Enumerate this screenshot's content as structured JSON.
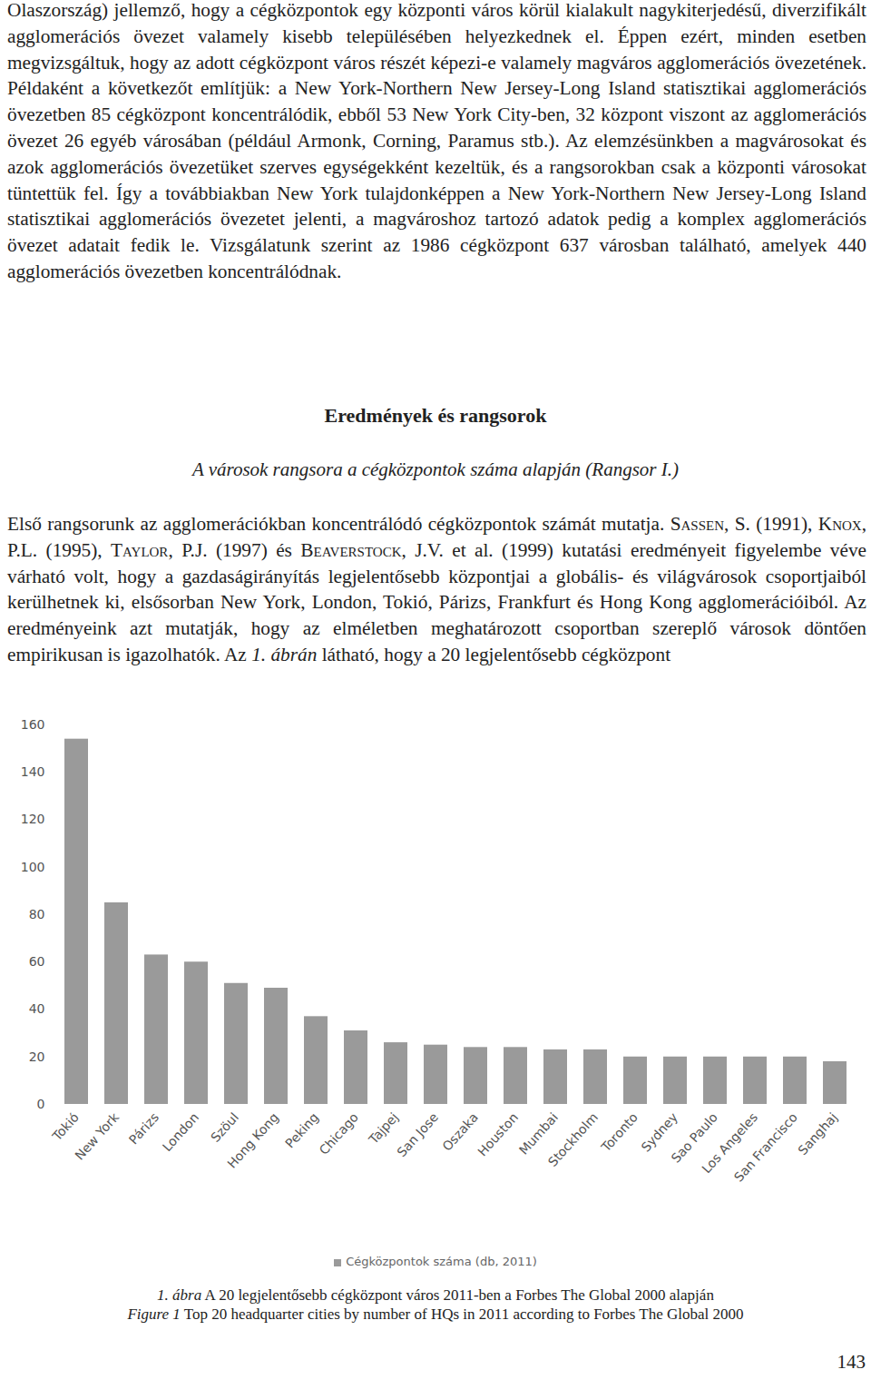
{
  "paragraph1": "Olaszország) jellemző, hogy a cégközpontok egy központi város körül kialakult nagykiterjedésű, diverzifikált agglomerációs övezet valamely kisebb településében helyezkednek el. Éppen ezért, minden esetben megvizsgáltuk, hogy az adott cégközpont város részét képezi-e valamely magváros agglomerációs övezetének. Példaként a következőt említjük: a New York-Northern New Jersey-Long Island statisztikai agglomerációs övezetben 85 cégközpont koncentrálódik, ebből 53 New York City-ben, 32 központ viszont az agglomerációs övezet 26 egyéb városában (például Armonk, Corning, Paramus stb.). Az elemzésünkben a magvárosokat és azok agglomerációs övezetüket szerves egységekként kezeltük, és a rangsorokban csak a központi városokat tüntettük fel. Így a továbbiakban New York tulajdonképpen a New York-Northern New Jersey-Long Island statisztikai agglomerációs övezetet jelenti, a magvároshoz tartozó adatok pedig a komplex agglomerációs övezet adatait fedik le. Vizsgálatunk szerint az 1986 cégközpont 637 városban található, amelyek 440 agglomerációs övezetben koncentrálódnak.",
  "heading": "Eredmények és rangsorok",
  "subheading": "A városok rangsora a cégközpontok száma alapján (Rangsor I.)",
  "paragraph2": [
    {
      "text": "Első rangsorunk az agglomerációkban koncentrálódó cégközpontok számát mutatja. ",
      "style": "plain"
    },
    {
      "text": "Sassen",
      "style": "smallcaps"
    },
    {
      "text": ", S. (1991), ",
      "style": "plain"
    },
    {
      "text": "Knox",
      "style": "smallcaps"
    },
    {
      "text": ", P.L. (1995), ",
      "style": "plain"
    },
    {
      "text": "Taylor",
      "style": "smallcaps"
    },
    {
      "text": ", P.J. (1997) és ",
      "style": "plain"
    },
    {
      "text": "Beaverstock",
      "style": "smallcaps"
    },
    {
      "text": ", J.V. et al. (1999) kutatási eredményeit figyelembe véve várható volt, hogy a gazdaságirányítás legjelentősebb központjai a globális- és világvárosok csoportjaiból kerülhetnek ki, elsősorban New York, London, Tokió, Párizs, Frankfurt és Hong Kong agglomerációiból. Az eredményeink azt mutatják, hogy az elméletben meghatározott csoportban szereplő városok döntően empirikusan is igazolhatók. Az ",
      "style": "plain"
    },
    {
      "text": "1. ábrán",
      "style": "italic"
    },
    {
      "text": " látható, hogy a 20 legjelentősebb cégközpont",
      "style": "plain"
    }
  ],
  "chart_data": {
    "type": "bar",
    "categories": [
      "Tokió",
      "New York",
      "Párizs",
      "London",
      "Szöul",
      "Hong Kong",
      "Peking",
      "Chicago",
      "Tajpej",
      "San Jose",
      "Oszaka",
      "Houston",
      "Mumbai",
      "Stockholm",
      "Toronto",
      "Sydney",
      "Sao Paulo",
      "Los Angeles",
      "San Francisco",
      "Sanghaj"
    ],
    "series": [
      {
        "name": "Cégközpontok száma (db, 2011)",
        "color": "#9a9a9a",
        "values": [
          154,
          85,
          63,
          60,
          51,
          49,
          37,
          31,
          26,
          25,
          24,
          24,
          23,
          23,
          20,
          20,
          20,
          20,
          20,
          18
        ]
      }
    ],
    "ylim": [
      0,
      160
    ],
    "yticks": [
      0,
      20,
      40,
      60,
      80,
      100,
      120,
      140,
      160
    ],
    "grid": false,
    "legend": "bottom"
  },
  "caption": [
    [
      {
        "text": "1. ábra",
        "style": "italic"
      },
      {
        "text": " A 20 legjelentősebb cégközpont város 2011-ben a Forbes The Global 2000 alapján",
        "style": "plain"
      }
    ],
    [
      {
        "text": "Figure 1",
        "style": "italic"
      },
      {
        "text": " Top 20 headquarter cities by number of HQs in 2011 according to Forbes The Global 2000",
        "style": "plain"
      }
    ]
  ],
  "page_number": "143"
}
